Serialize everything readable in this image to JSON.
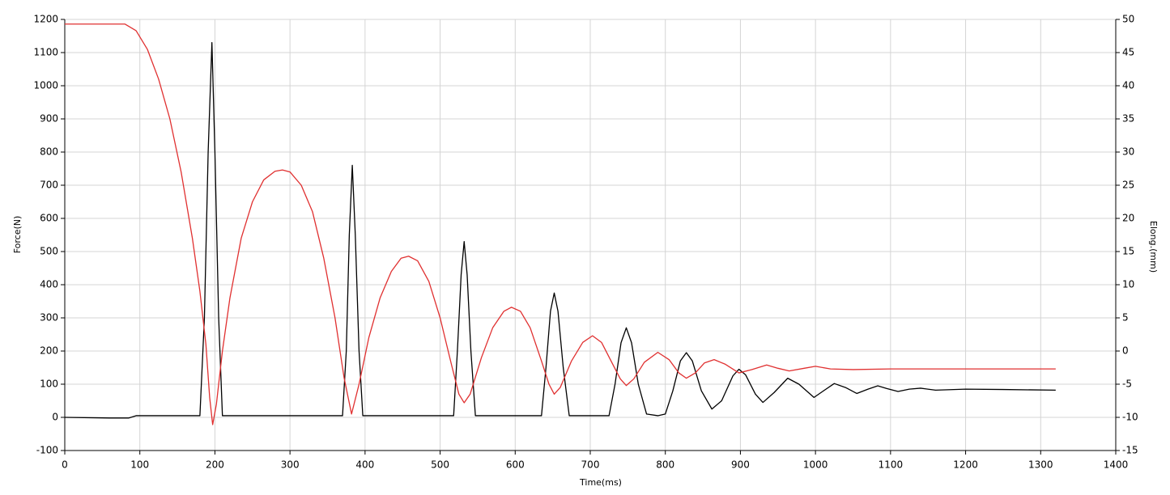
{
  "chart_data": {
    "type": "line",
    "x_label": "Time(ms)",
    "y_label": "Force(N)",
    "y2_label": "Elong.(mm)",
    "xlim": [
      0,
      1400
    ],
    "xticks": [
      0,
      100,
      200,
      300,
      400,
      500,
      600,
      700,
      800,
      900,
      1000,
      1100,
      1200,
      1300,
      1400
    ],
    "ylim": [
      -100,
      1200
    ],
    "yticks": [
      -100,
      0,
      100,
      200,
      300,
      400,
      500,
      600,
      700,
      800,
      900,
      1000,
      1100,
      1200
    ],
    "y2lim": [
      -15,
      50
    ],
    "y2ticks": [
      -15,
      -10,
      -5,
      0,
      5,
      10,
      15,
      20,
      25,
      30,
      35,
      40,
      45,
      50
    ],
    "grid": true,
    "series": [
      {
        "color": "#000000",
        "axis": "y",
        "x": [
          0,
          60,
          85,
          95,
          180,
          186,
          191,
          196,
          200,
          205,
          210,
          370,
          375,
          379,
          383,
          387,
          392,
          397,
          518,
          523,
          528,
          532,
          536,
          541,
          547,
          635,
          641,
          647,
          652,
          657,
          664,
          672,
          725,
          733,
          741,
          748,
          755,
          764,
          775,
          790,
          800,
          810,
          820,
          828,
          836,
          848,
          862,
          875,
          890,
          898,
          907,
          920,
          930,
          945,
          963,
          978,
          998,
          1012,
          1025,
          1040,
          1055,
          1070,
          1083,
          1095,
          1110,
          1125,
          1140,
          1160,
          1200,
          1250,
          1320
        ],
        "values": [
          0,
          -2,
          -2,
          5,
          5,
          300,
          800,
          1130,
          800,
          300,
          5,
          5,
          200,
          550,
          760,
          550,
          200,
          5,
          5,
          200,
          430,
          530,
          430,
          200,
          5,
          5,
          150,
          320,
          375,
          320,
          150,
          5,
          5,
          100,
          225,
          270,
          225,
          100,
          10,
          5,
          10,
          80,
          170,
          195,
          170,
          80,
          25,
          50,
          125,
          145,
          128,
          70,
          45,
          75,
          118,
          100,
          60,
          82,
          102,
          90,
          72,
          85,
          95,
          87,
          78,
          85,
          88,
          82,
          85,
          84,
          82
        ]
      },
      {
        "color": "#e03030",
        "axis": "y2",
        "x": [
          0,
          80,
          95,
          110,
          125,
          140,
          155,
          170,
          180,
          188,
          193,
          197,
          202,
          210,
          220,
          235,
          250,
          265,
          280,
          290,
          300,
          315,
          330,
          345,
          360,
          372,
          382,
          392,
          405,
          420,
          435,
          448,
          458,
          470,
          485,
          500,
          515,
          525,
          532,
          540,
          555,
          570,
          585,
          595,
          607,
          620,
          635,
          645,
          652,
          660,
          675,
          690,
          703,
          715,
          730,
          740,
          748,
          758,
          772,
          790,
          805,
          818,
          828,
          840,
          852,
          865,
          880,
          898,
          915,
          935,
          950,
          965,
          985,
          1000,
          1020,
          1050,
          1100,
          1200,
          1320
        ],
        "values": [
          49.3,
          49.3,
          48.3,
          45.5,
          41,
          35,
          27,
          17,
          9,
          1,
          -7,
          -11.1,
          -8,
          0,
          8,
          17,
          22.5,
          25.8,
          27.1,
          27.3,
          27,
          25,
          21,
          14,
          5,
          -4,
          -9.5,
          -5,
          2,
          8,
          12,
          14,
          14.3,
          13.6,
          10.5,
          5,
          -2,
          -6.5,
          -7.8,
          -6.5,
          -1,
          3.5,
          6,
          6.6,
          6,
          3.5,
          -1.5,
          -5,
          -6.5,
          -5.5,
          -1.5,
          1.3,
          2.3,
          1.3,
          -2,
          -4.2,
          -5.2,
          -4.2,
          -1.7,
          -0.2,
          -1.3,
          -3.3,
          -4.1,
          -3.3,
          -1.8,
          -1.3,
          -2,
          -3.3,
          -2.8,
          -2.1,
          -2.6,
          -3,
          -2.6,
          -2.3,
          -2.7,
          -2.8,
          -2.7,
          -2.7,
          -2.7
        ]
      }
    ]
  }
}
